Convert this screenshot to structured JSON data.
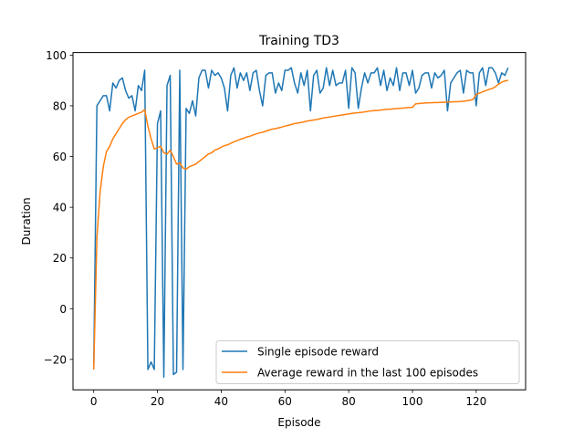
{
  "chart_data": {
    "type": "line",
    "title": "Training TD3",
    "xlabel": "Episode",
    "ylabel": "Duration",
    "xlim": [
      -6.5,
      135.5
    ],
    "ylim": [
      -32,
      101
    ],
    "xticks": [
      0,
      20,
      40,
      60,
      80,
      100,
      120
    ],
    "yticks": [
      -20,
      0,
      20,
      40,
      60,
      80,
      100
    ],
    "grid": false,
    "legend_position": "lower-right",
    "series": [
      {
        "name": "Single episode reward",
        "color": "#1f77b4",
        "values": [
          -24,
          80,
          82,
          84,
          84,
          78,
          89,
          87,
          90,
          91,
          86,
          83,
          84,
          78,
          88,
          86,
          94,
          -24,
          -21,
          -24,
          73,
          78,
          -27,
          88,
          92,
          -26,
          -25,
          94,
          -24,
          79,
          77,
          82,
          76,
          91,
          94,
          94,
          87,
          94,
          92,
          93,
          91,
          87,
          78,
          92,
          95,
          87,
          93,
          90,
          93,
          86,
          93,
          94,
          86,
          80,
          92,
          93,
          93,
          85,
          89,
          86,
          94,
          94,
          95,
          89,
          85,
          93,
          88,
          94,
          78,
          92,
          94,
          85,
          87,
          95,
          88,
          94,
          88,
          89,
          89,
          94,
          79,
          95,
          93,
          79,
          87,
          93,
          89,
          93,
          93,
          95,
          88,
          94,
          86,
          91,
          88,
          95,
          86,
          93,
          93,
          88,
          94,
          85,
          87,
          92,
          93,
          93,
          87,
          93,
          91,
          92,
          94,
          78,
          89,
          91,
          93,
          94,
          85,
          94,
          93,
          93,
          80,
          93,
          95,
          88,
          95,
          95,
          93,
          89,
          93,
          92,
          95
        ]
      },
      {
        "name": "Average reward in the last 100 episodes",
        "color": "#ff7f0e",
        "values": [
          -24,
          28,
          46,
          56,
          62,
          64,
          67,
          69,
          71,
          73,
          74.5,
          75.5,
          76,
          76.5,
          77,
          77.5,
          78.5,
          72,
          67,
          63,
          63.5,
          64,
          61.5,
          61,
          62.5,
          60,
          57,
          57.5,
          55.5,
          55,
          56,
          56.5,
          57,
          58,
          59,
          60,
          61,
          61.5,
          62.5,
          63,
          63.7,
          64.3,
          64.6,
          65.2,
          65.8,
          66.3,
          66.8,
          67.2,
          67.7,
          68,
          68.5,
          68.9,
          69.3,
          69.6,
          70,
          70.4,
          70.8,
          71,
          71.3,
          71.6,
          72,
          72.3,
          72.6,
          73,
          73.2,
          73.4,
          73.7,
          74,
          74.2,
          74.4,
          74.6,
          74.9,
          75.2,
          75.4,
          75.6,
          75.8,
          76,
          76.2,
          76.4,
          76.6,
          76.8,
          77,
          77.2,
          77.3,
          77.4,
          77.6,
          77.8,
          78,
          78.1,
          78.2,
          78.3,
          78.5,
          78.6,
          78.7,
          78.8,
          78.9,
          79,
          79.1,
          79.2,
          79.3,
          79.4,
          80.8,
          80.9,
          81,
          81.1,
          81.2,
          81.2,
          81.3,
          81.3,
          81.4,
          81.4,
          81.5,
          81.5,
          81.6,
          81.6,
          81.7,
          81.8,
          82,
          82.2,
          82.5,
          84.5,
          85,
          85.5,
          86,
          86.5,
          86.8,
          87.5,
          88.5,
          89.3,
          89.8,
          90
        ]
      }
    ]
  }
}
